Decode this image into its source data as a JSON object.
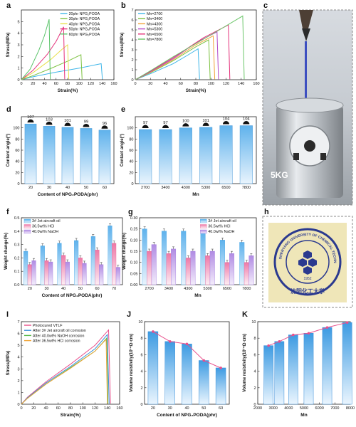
{
  "panel_letters": {
    "a": "a",
    "b": "b",
    "c": "c",
    "d": "d",
    "e": "e",
    "f": "f",
    "g": "g",
    "h": "h",
    "i": "I",
    "j": "J",
    "k": "K"
  },
  "photo_c": {
    "label": "5KG"
  },
  "photo_h": {
    "seal_top_text": "SHENYANG UNIVERSITY OF CHEMICAL TECHNOLOGY",
    "seal_year": "1952",
    "seal_bottom_text": "沈阳化工大学"
  },
  "chart_data": [
    {
      "panel": "a",
      "type": "line",
      "xlabel": "Strain(%)",
      "ylabel": "Stress(MPa)",
      "xlim": [
        0,
        160
      ],
      "ylim": [
        0,
        6
      ],
      "xticks": [
        0,
        20,
        40,
        60,
        80,
        100,
        120,
        140,
        160
      ],
      "yticks": [
        0,
        1,
        2,
        3,
        4,
        5
      ],
      "legend_position": "top-right",
      "series": [
        {
          "name": "20phr NPG₂PODA",
          "color": "#3fb6e8",
          "points": [
            [
              0,
              0
            ],
            [
              20,
              0.25
            ],
            [
              60,
              0.65
            ],
            [
              100,
              1.0
            ],
            [
              138,
              1.38
            ],
            [
              140,
              0.05
            ]
          ]
        },
        {
          "name": "30phr NPG₂PODA",
          "color": "#7dc242",
          "points": [
            [
              0,
              0
            ],
            [
              20,
              0.35
            ],
            [
              50,
              0.95
            ],
            [
              80,
              1.6
            ],
            [
              103,
              2.15
            ],
            [
              105,
              0.05
            ]
          ]
        },
        {
          "name": "40phr NPG₂PODA",
          "color": "#e8e04a",
          "points": [
            [
              0,
              0
            ],
            [
              20,
              0.6
            ],
            [
              50,
              1.7
            ],
            [
              70,
              2.6
            ],
            [
              80,
              3.0
            ],
            [
              82,
              0.05
            ]
          ]
        },
        {
          "name": "50phr NPG₂PODA",
          "color": "#e4307a",
          "points": [
            [
              0,
              0
            ],
            [
              20,
              0.8
            ],
            [
              45,
              2.2
            ],
            [
              60,
              3.3
            ],
            [
              73,
              4.55
            ],
            [
              75,
              0.05
            ]
          ]
        },
        {
          "name": "60phr NPG₂PODA",
          "color": "#5bc46b",
          "points": [
            [
              0,
              0
            ],
            [
              15,
              0.9
            ],
            [
              30,
              2.5
            ],
            [
              40,
              3.8
            ],
            [
              48,
              5.2
            ],
            [
              50,
              0.05
            ]
          ]
        }
      ]
    },
    {
      "panel": "b",
      "type": "line",
      "xlabel": "Strain(%)",
      "ylabel": "Stress(MPa)",
      "xlim": [
        0,
        160
      ],
      "ylim": [
        0,
        7
      ],
      "xticks": [
        0,
        20,
        40,
        60,
        80,
        100,
        120,
        140,
        160
      ],
      "yticks": [
        0,
        1,
        2,
        3,
        4,
        5,
        6,
        7
      ],
      "legend_position": "top-left",
      "series": [
        {
          "name": "Mn=2700",
          "color": "#3fb6e8",
          "points": [
            [
              0,
              0
            ],
            [
              20,
              0.6
            ],
            [
              50,
              1.6
            ],
            [
              70,
              2.5
            ],
            [
              83,
              3.1
            ],
            [
              85,
              0.05
            ]
          ]
        },
        {
          "name": "Mn=3400",
          "color": "#7dc242",
          "points": [
            [
              0,
              0
            ],
            [
              20,
              0.7
            ],
            [
              50,
              1.9
            ],
            [
              80,
              3.3
            ],
            [
              97,
              4.0
            ],
            [
              99,
              0.05
            ]
          ]
        },
        {
          "name": "Mn=4300",
          "color": "#f2a33a",
          "points": [
            [
              0,
              0
            ],
            [
              20,
              0.75
            ],
            [
              50,
              2.0
            ],
            [
              80,
              3.5
            ],
            [
              103,
              4.4
            ],
            [
              105,
              0.05
            ]
          ]
        },
        {
          "name": "Mn=5300",
          "color": "#b44bc8",
          "points": [
            [
              0,
              0
            ],
            [
              20,
              0.8
            ],
            [
              50,
              2.1
            ],
            [
              80,
              3.7
            ],
            [
              108,
              4.8
            ],
            [
              110,
              0.05
            ]
          ]
        },
        {
          "name": "Mn=6500",
          "color": "#e4307a",
          "points": [
            [
              0,
              0
            ],
            [
              20,
              0.85
            ],
            [
              50,
              2.2
            ],
            [
              90,
              4.2
            ],
            [
              123,
              5.5
            ],
            [
              125,
              0.05
            ]
          ]
        },
        {
          "name": "Mn=7800",
          "color": "#6cc66a",
          "points": [
            [
              0,
              0
            ],
            [
              20,
              0.9
            ],
            [
              50,
              2.3
            ],
            [
              100,
              4.5
            ],
            [
              142,
              6.4
            ],
            [
              144,
              0.05
            ]
          ]
        }
      ]
    },
    {
      "panel": "d",
      "type": "bar",
      "xlabel": "Content of NPG₂PODA(phr)",
      "ylabel": "Content angle(°)",
      "categories": [
        "20",
        "30",
        "40",
        "50",
        "60"
      ],
      "values": [
        107,
        103,
        101,
        99,
        96
      ],
      "ylim": [
        0,
        120
      ],
      "yticks": [
        0,
        20,
        40,
        60,
        80,
        100
      ],
      "bar_color": "#6db8ee"
    },
    {
      "panel": "e",
      "type": "bar",
      "xlabel": "Mn",
      "ylabel": "Contact angle(°)",
      "categories": [
        "2700",
        "3400",
        "4300",
        "5300",
        "6500",
        "7800"
      ],
      "values": [
        97,
        97,
        100,
        101,
        104,
        104
      ],
      "ylim": [
        0,
        120
      ],
      "yticks": [
        0,
        20,
        40,
        60,
        80,
        100
      ],
      "bar_color": "#6db8ee"
    },
    {
      "panel": "f",
      "type": "bar",
      "xlabel": "Content of NPG₂PODA(phr)",
      "ylabel": "Weight change(%)",
      "categories": [
        "20",
        "30",
        "40",
        "50",
        "60",
        "70"
      ],
      "ylim": [
        0,
        0.5
      ],
      "yticks": [
        0.0,
        0.1,
        0.2,
        0.3,
        0.4,
        0.5
      ],
      "legend_position": "top-left",
      "series": [
        {
          "name": "3# Jet aircraft oil",
          "color": "#4aa9e6",
          "values": [
            0.25,
            0.29,
            0.31,
            0.33,
            0.36,
            0.44
          ]
        },
        {
          "name": "36.5wt% HCl",
          "color": "#ec6fa0",
          "values": [
            0.15,
            0.18,
            0.22,
            0.2,
            0.26,
            0.31
          ]
        },
        {
          "name": "40.0wt% NaOH",
          "color": "#a47de0",
          "values": [
            0.18,
            0.17,
            0.17,
            0.16,
            0.15,
            0.13
          ]
        }
      ]
    },
    {
      "panel": "g",
      "type": "bar",
      "xlabel": "Mn",
      "ylabel": "Weight change(%)",
      "categories": [
        "2700",
        "3400",
        "4300",
        "5300",
        "6500",
        "7800"
      ],
      "ylim": [
        0,
        0.3
      ],
      "yticks": [
        0.0,
        0.05,
        0.1,
        0.15,
        0.2,
        0.25,
        0.3
      ],
      "legend_position": "top-right",
      "series": [
        {
          "name": "3# Jet aircraft oil",
          "color": "#4aa9e6",
          "values": [
            0.25,
            0.24,
            0.24,
            0.23,
            0.2,
            0.19
          ]
        },
        {
          "name": "36.5wt% HCl",
          "color": "#ec6fa0",
          "values": [
            0.15,
            0.14,
            0.12,
            0.13,
            0.1,
            0.1
          ]
        },
        {
          "name": "40.0wt% NaOH",
          "color": "#a47de0",
          "values": [
            0.18,
            0.16,
            0.15,
            0.15,
            0.14,
            0.13
          ]
        }
      ]
    },
    {
      "panel": "i",
      "type": "line",
      "xlabel": "Strain(%)",
      "ylabel": "Stress(MPa)",
      "xlim": [
        0,
        160
      ],
      "ylim": [
        0,
        7
      ],
      "xticks": [
        0,
        20,
        40,
        60,
        80,
        100,
        120,
        140,
        160
      ],
      "yticks": [
        0,
        1,
        2,
        3,
        4,
        5,
        6,
        7
      ],
      "legend_position": "top-left",
      "series": [
        {
          "name": "Photocured VTLF",
          "color": "#e94f8a",
          "points": [
            [
              0,
              0
            ],
            [
              10,
              0.6
            ],
            [
              40,
              1.9
            ],
            [
              80,
              3.4
            ],
            [
              120,
              5.0
            ],
            [
              142,
              6.3
            ],
            [
              145,
              0.05
            ]
          ]
        },
        {
          "name": "After 3# Jet aircraft oil corrosion",
          "color": "#3a8fd8",
          "points": [
            [
              0,
              0
            ],
            [
              10,
              0.55
            ],
            [
              40,
              1.8
            ],
            [
              80,
              3.2
            ],
            [
              120,
              4.7
            ],
            [
              140,
              5.9
            ],
            [
              143,
              0.05
            ]
          ]
        },
        {
          "name": "After 40.0wt% NaOH corrosion",
          "color": "#58b848",
          "points": [
            [
              0,
              0
            ],
            [
              10,
              0.5
            ],
            [
              40,
              1.7
            ],
            [
              80,
              3.1
            ],
            [
              120,
              4.5
            ],
            [
              139,
              5.6
            ],
            [
              141,
              0.05
            ]
          ]
        },
        {
          "name": "After 36.5wt% HCl corrosion",
          "color": "#f0a53a",
          "points": [
            [
              0,
              0
            ],
            [
              10,
              0.5
            ],
            [
              40,
              1.7
            ],
            [
              80,
              3.05
            ],
            [
              120,
              4.5
            ],
            [
              138,
              5.5
            ],
            [
              140,
              0.05
            ]
          ]
        }
      ]
    },
    {
      "panel": "j",
      "type": "bar",
      "xlabel": "Content of NPG₂PODA(phr)",
      "ylabel": "Volume resistivity(10¹⁴Ω·cm)",
      "x": [
        20,
        30,
        40,
        50,
        60
      ],
      "values": [
        8.8,
        7.6,
        7.3,
        5.3,
        4.4
      ],
      "xlim": [
        15,
        65
      ],
      "xticks": [
        20,
        30,
        40,
        50,
        60
      ],
      "ylim": [
        0,
        10
      ],
      "yticks": [
        0,
        2,
        4,
        6,
        8,
        10
      ],
      "bar_color": "#4aa9e6",
      "line_color": "#e8508c"
    },
    {
      "panel": "k",
      "type": "bar",
      "xlabel": "Mn",
      "ylabel": "Volume resistivity(10¹⁴Ω·cm)",
      "x": [
        2700,
        3400,
        4300,
        5300,
        6500,
        7800
      ],
      "values": [
        7.1,
        7.6,
        8.4,
        8.6,
        9.3,
        9.9
      ],
      "xlim": [
        2000,
        8000
      ],
      "xticks": [
        2000,
        3000,
        4000,
        5000,
        6000,
        7000,
        8000
      ],
      "ylim": [
        0,
        10
      ],
      "yticks": [
        0,
        2,
        4,
        6,
        8,
        10
      ],
      "bar_color": "#4aa9e6",
      "line_color": "#e8508c"
    }
  ]
}
